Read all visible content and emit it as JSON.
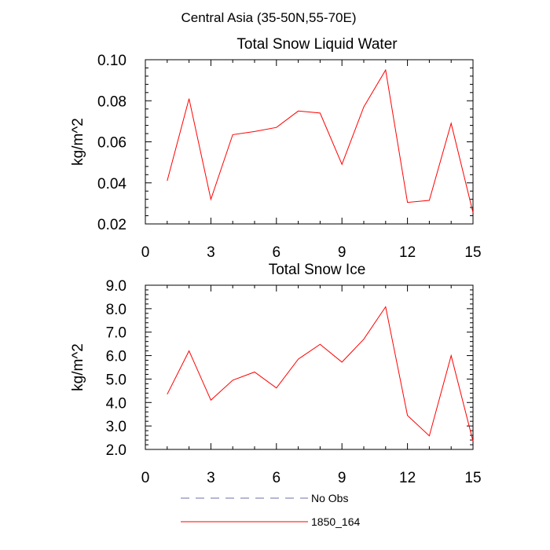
{
  "figure": {
    "suptitle": "Central Asia (35-50N,55-70E)"
  },
  "colors": {
    "model_line": "#ff0000",
    "obs_line": "#6f6fa8",
    "axes": "#000000"
  },
  "legend": {
    "entries": [
      {
        "label": "No Obs",
        "style": "dashed"
      },
      {
        "label": "1850_164",
        "style": "solid"
      }
    ]
  },
  "chart_data": [
    {
      "type": "line",
      "title": "Total Snow Liquid Water",
      "xlabel": "",
      "ylabel": "kg/m^2",
      "xlim": [
        0,
        15
      ],
      "ylim": [
        0.02,
        0.1
      ],
      "xticks": [
        0,
        3,
        6,
        9,
        12,
        15
      ],
      "xtick_labels": [
        "0",
        "3",
        "6",
        "9",
        "12",
        "15"
      ],
      "yticks": [
        0.02,
        0.04,
        0.06,
        0.08,
        0.1
      ],
      "ytick_labels": [
        "0.02",
        "0.04",
        "0.06",
        "0.08",
        "0.10"
      ],
      "grid": false,
      "series": [
        {
          "name": "1850_164",
          "x": [
            1,
            2,
            3,
            4,
            5,
            6,
            7,
            8,
            9,
            10,
            11,
            12,
            13,
            14,
            15
          ],
          "y": [
            0.041,
            0.081,
            0.032,
            0.0635,
            0.065,
            0.067,
            0.075,
            0.074,
            0.049,
            0.077,
            0.095,
            0.0305,
            0.0315,
            0.069,
            0.0255
          ]
        }
      ]
    },
    {
      "type": "line",
      "title": "Total Snow Ice",
      "xlabel": "",
      "ylabel": "kg/m^2",
      "xlim": [
        0,
        15
      ],
      "ylim": [
        2.0,
        9.0
      ],
      "xticks": [
        0,
        3,
        6,
        9,
        12,
        15
      ],
      "xtick_labels": [
        "0",
        "3",
        "6",
        "9",
        "12",
        "15"
      ],
      "yticks": [
        2,
        3,
        4,
        5,
        6,
        7,
        8,
        9
      ],
      "ytick_labels": [
        "2.0",
        "3.0",
        "4.0",
        "5.0",
        "6.0",
        "7.0",
        "8.0",
        "9.0"
      ],
      "grid": false,
      "series": [
        {
          "name": "1850_164",
          "x": [
            1,
            2,
            3,
            4,
            5,
            6,
            7,
            8,
            9,
            10,
            11,
            12,
            13,
            14,
            15
          ],
          "y": [
            4.35,
            6.2,
            4.1,
            4.95,
            5.3,
            4.62,
            5.85,
            6.48,
            5.72,
            6.7,
            8.08,
            3.45,
            2.58,
            6.0,
            2.35
          ]
        }
      ]
    }
  ]
}
